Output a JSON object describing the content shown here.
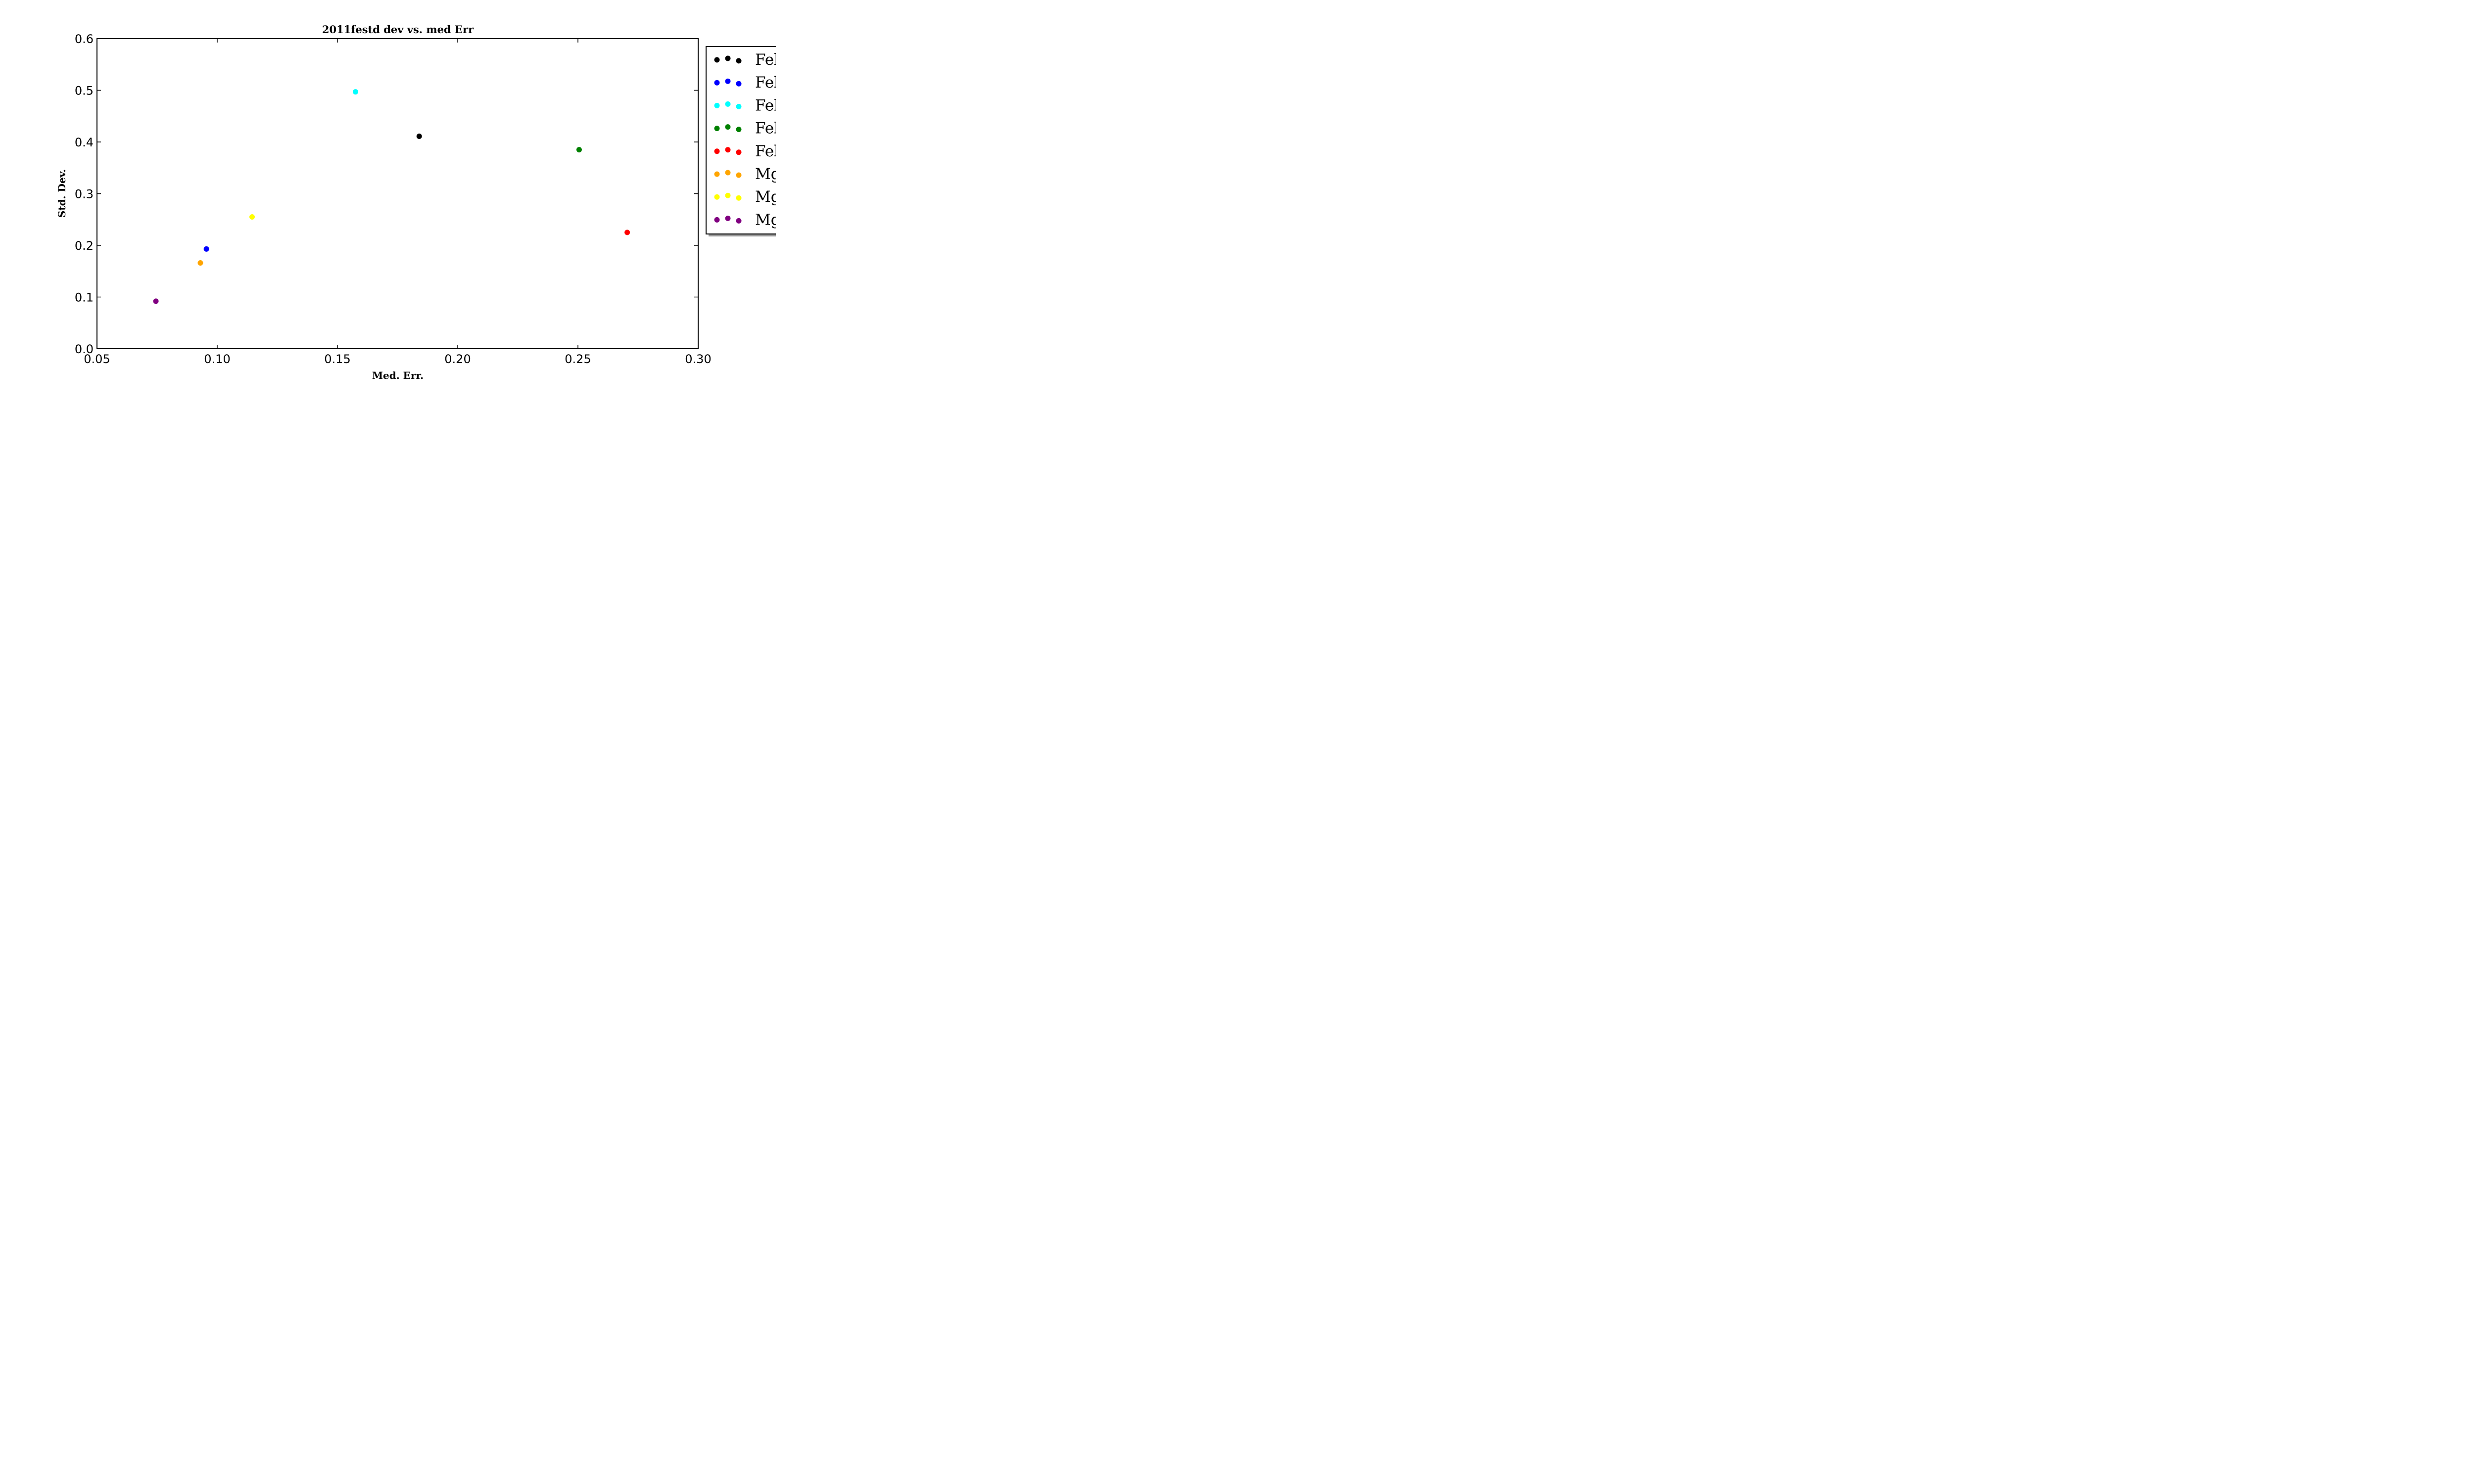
{
  "chart_data": {
    "type": "scatter",
    "title": "2011festd dev vs. med Err",
    "xlabel": "Med. Err.",
    "ylabel": "Std. Dev.",
    "xlim": [
      0.05,
      0.3
    ],
    "ylim": [
      0.0,
      0.6
    ],
    "x_ticks": [
      "0.05",
      "0.10",
      "0.15",
      "0.20",
      "0.25",
      "0.30"
    ],
    "y_ticks": [
      "0.0",
      "0.1",
      "0.2",
      "0.3",
      "0.4",
      "0.5",
      "0.6"
    ],
    "x_tick_values": [
      0.05,
      0.1,
      0.15,
      0.2,
      0.25,
      0.3
    ],
    "y_tick_values": [
      0.0,
      0.1,
      0.2,
      0.3,
      0.4,
      0.5,
      0.6
    ],
    "grid": false,
    "legend_position": "outside-right",
    "series": [
      {
        "name": "Fel",
        "color": "#000000",
        "points": [
          {
            "x": 0.184,
            "y": 0.411
          }
        ]
      },
      {
        "name": "Fel",
        "color": "#0000ff",
        "points": [
          {
            "x": 0.0955,
            "y": 0.193
          }
        ]
      },
      {
        "name": "Fel",
        "color": "#00ffff",
        "points": [
          {
            "x": 0.1575,
            "y": 0.497
          }
        ]
      },
      {
        "name": "Fel",
        "color": "#008000",
        "points": [
          {
            "x": 0.2505,
            "y": 0.385
          }
        ]
      },
      {
        "name": "Fel",
        "color": "#ff0000",
        "points": [
          {
            "x": 0.2705,
            "y": 0.225
          }
        ]
      },
      {
        "name": "Mg",
        "color": "#ffa500",
        "points": [
          {
            "x": 0.093,
            "y": 0.166
          }
        ]
      },
      {
        "name": "Mg",
        "color": "#ffff00",
        "points": [
          {
            "x": 0.1145,
            "y": 0.255
          }
        ]
      },
      {
        "name": "Mg",
        "color": "#800080",
        "points": [
          {
            "x": 0.0745,
            "y": 0.092
          }
        ]
      }
    ]
  }
}
